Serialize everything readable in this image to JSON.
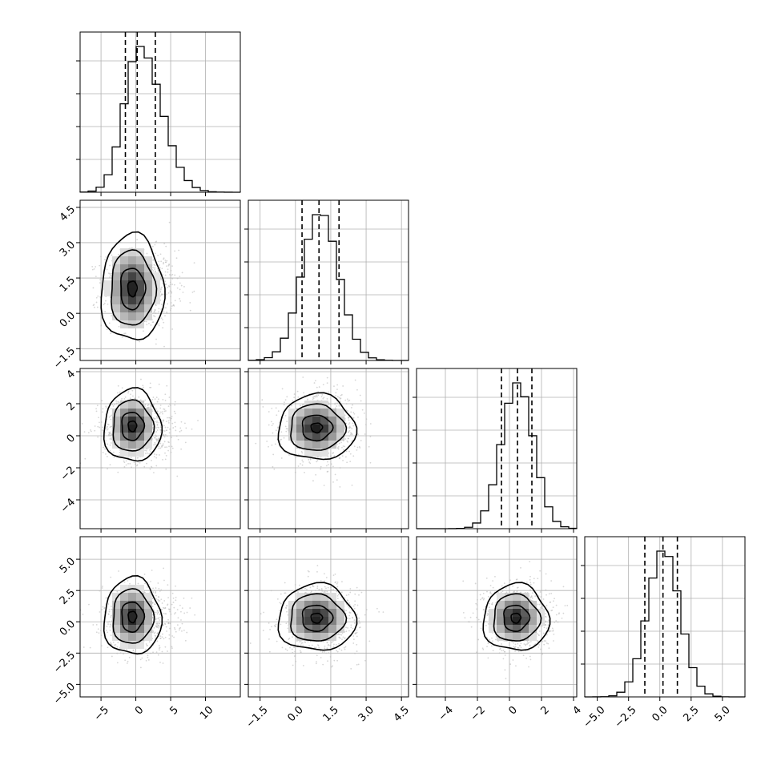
{
  "chart_data": {
    "type": "corner",
    "params": [
      {
        "mean": 0.5,
        "sd": 2.5,
        "range": [
          -8,
          15
        ],
        "ticks": [
          -5,
          0,
          5,
          10
        ],
        "tick_labels": [
          "−5",
          "0",
          "5",
          "10"
        ],
        "quantiles": [
          -1.5,
          0.2,
          2.8
        ]
      },
      {
        "mean": 1.05,
        "sd": 0.78,
        "range": [
          -2.0,
          4.8
        ],
        "ticks": [
          -1.5,
          0.0,
          1.5,
          3.0,
          4.5
        ],
        "tick_labels": [
          "−1.5",
          "0.0",
          "1.5",
          "3.0",
          "4.5"
        ],
        "quantiles": [
          0.28,
          1.0,
          1.85
        ]
      },
      {
        "mean": 0.5,
        "sd": 1.0,
        "range": [
          -5.8,
          4.2
        ],
        "ticks": [
          -4,
          -2,
          0,
          2,
          4
        ],
        "tick_labels": [
          "−4",
          "−2",
          "0",
          "2",
          "4"
        ],
        "quantiles": [
          -0.5,
          0.5,
          1.4
        ]
      },
      {
        "mean": 0.3,
        "sd": 1.3,
        "range": [
          -6.0,
          6.8
        ],
        "ticks": [
          -5.0,
          -2.5,
          0.0,
          2.5,
          5.0
        ],
        "tick_labels": [
          "−5.0",
          "−2.5",
          "0.0",
          "2.5",
          "5.0"
        ],
        "quantiles": [
          -1.2,
          0.25,
          1.4
        ]
      }
    ],
    "pairs": [
      {
        "x": 0,
        "y": 1,
        "mode": [
          -0.5,
          1.05
        ],
        "width": [
          2.2,
          1.1
        ],
        "contour_levels": 3
      },
      {
        "x": 0,
        "y": 2,
        "mode": [
          -0.5,
          0.6
        ],
        "width": [
          2.0,
          1.1
        ],
        "contour_levels": 3
      },
      {
        "x": 0,
        "y": 3,
        "mode": [
          -0.5,
          0.4
        ],
        "width": [
          2.0,
          1.5
        ],
        "contour_levels": 3
      },
      {
        "x": 1,
        "y": 2,
        "mode": [
          0.9,
          0.5
        ],
        "width": [
          0.8,
          1.0
        ],
        "contour_levels": 3
      },
      {
        "x": 1,
        "y": 3,
        "mode": [
          0.9,
          0.3
        ],
        "width": [
          0.8,
          1.3
        ],
        "contour_levels": 3
      },
      {
        "x": 2,
        "y": 3,
        "mode": [
          0.4,
          0.3
        ],
        "width": [
          1.0,
          1.3
        ],
        "contour_levels": 3
      }
    ],
    "grid": true
  }
}
